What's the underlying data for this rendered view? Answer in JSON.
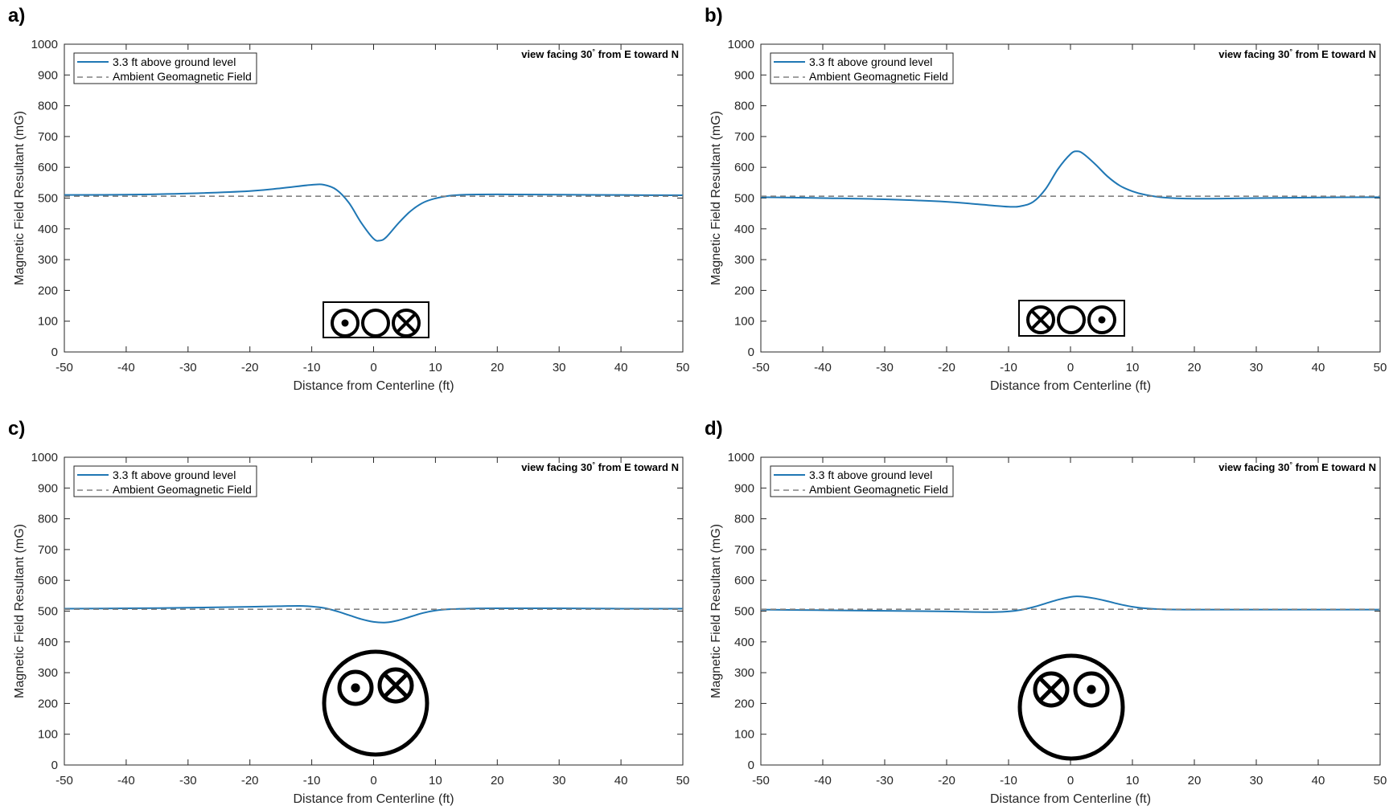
{
  "figure": {
    "common": {
      "xlabel": "Distance from Centerline (ft)",
      "ylabel": "Magnetic Field Resultant (mG)",
      "view_note_prefix": "view facing 30",
      "view_note_degree": "°",
      "view_note_suffix": " from E toward N",
      "legend": [
        "3.3 ft above ground level",
        "Ambient Geomagnetic Field"
      ],
      "xlim": [
        -50,
        50
      ],
      "ylim": [
        0,
        1000
      ],
      "xticks": [
        -50,
        -40,
        -30,
        -20,
        -10,
        0,
        10,
        20,
        30,
        40,
        50
      ],
      "yticks": [
        0,
        100,
        200,
        300,
        400,
        500,
        600,
        700,
        800,
        900,
        1000
      ],
      "colors": {
        "field_line": "#1f77b4",
        "ambient_line": "#808080",
        "axis": "#262626"
      }
    }
  },
  "chart_data": [
    {
      "type": "line",
      "panel_label": "a)",
      "xlabel": "Distance from Centerline (ft)",
      "ylabel": "Magnetic Field Resultant (mG)",
      "xlim": [
        -50,
        50
      ],
      "ylim": [
        0,
        1000
      ],
      "legend_location": "top-left",
      "series": [
        {
          "name": "3.3 ft above ground level",
          "style": "solid",
          "x": [
            -50,
            -40,
            -30,
            -20,
            -15,
            -10,
            -8,
            -6,
            -4,
            -2,
            0,
            1,
            2,
            4,
            6,
            8,
            10,
            12,
            15,
            20,
            30,
            40,
            50
          ],
          "y": [
            510,
            511,
            515,
            523,
            532,
            543,
            543,
            527,
            485,
            420,
            368,
            362,
            372,
            418,
            458,
            485,
            499,
            507,
            511,
            512,
            511,
            510,
            509
          ]
        },
        {
          "name": "Ambient Geomagnetic Field",
          "style": "dashed",
          "x": [
            -50,
            50
          ],
          "y": [
            506,
            506
          ]
        }
      ],
      "inset": {
        "kind": "row",
        "conductors": [
          "out",
          "empty",
          "in"
        ]
      }
    },
    {
      "type": "line",
      "panel_label": "b)",
      "xlabel": "Distance from Centerline (ft)",
      "ylabel": "Magnetic Field Resultant (mG)",
      "xlim": [
        -50,
        50
      ],
      "ylim": [
        0,
        1000
      ],
      "legend_location": "top-left",
      "series": [
        {
          "name": "3.3 ft above ground level",
          "style": "solid",
          "x": [
            -50,
            -40,
            -30,
            -20,
            -15,
            -10,
            -8,
            -6,
            -4,
            -2,
            0,
            1,
            2,
            4,
            6,
            8,
            10,
            12,
            15,
            20,
            30,
            40,
            50
          ],
          "y": [
            503,
            500,
            496,
            488,
            480,
            472,
            474,
            488,
            530,
            595,
            643,
            652,
            645,
            610,
            570,
            540,
            522,
            511,
            502,
            498,
            500,
            502,
            503
          ]
        },
        {
          "name": "Ambient Geomagnetic Field",
          "style": "dashed",
          "x": [
            -50,
            50
          ],
          "y": [
            506,
            506
          ]
        }
      ],
      "inset": {
        "kind": "row",
        "conductors": [
          "in",
          "empty",
          "out"
        ]
      }
    },
    {
      "type": "line",
      "panel_label": "c)",
      "xlabel": "Distance from Centerline (ft)",
      "ylabel": "Magnetic Field Resultant (mG)",
      "xlim": [
        -50,
        50
      ],
      "ylim": [
        0,
        1000
      ],
      "legend_location": "top-left",
      "series": [
        {
          "name": "3.3 ft above ground level",
          "style": "solid",
          "x": [
            -50,
            -40,
            -30,
            -20,
            -15,
            -12,
            -10,
            -8,
            -6,
            -4,
            -2,
            0,
            2,
            4,
            6,
            8,
            10,
            12,
            15,
            20,
            30,
            40,
            50
          ],
          "y": [
            508,
            509,
            511,
            514,
            516,
            517,
            515,
            510,
            500,
            487,
            474,
            465,
            463,
            470,
            482,
            494,
            502,
            506,
            508,
            509,
            509,
            508,
            508
          ]
        },
        {
          "name": "Ambient Geomagnetic Field",
          "style": "dashed",
          "x": [
            -50,
            50
          ],
          "y": [
            506,
            506
          ]
        }
      ],
      "inset": {
        "kind": "pipe",
        "conductors": [
          "out",
          "in"
        ]
      }
    },
    {
      "type": "line",
      "panel_label": "d)",
      "xlabel": "Distance from Centerline (ft)",
      "ylabel": "Magnetic Field Resultant (mG)",
      "xlim": [
        -50,
        50
      ],
      "ylim": [
        0,
        1000
      ],
      "legend_location": "top-left",
      "series": [
        {
          "name": "3.3 ft above ground level",
          "style": "solid",
          "x": [
            -50,
            -40,
            -30,
            -20,
            -15,
            -12,
            -10,
            -8,
            -6,
            -4,
            -2,
            0,
            1,
            2,
            4,
            6,
            8,
            10,
            12,
            15,
            20,
            30,
            40,
            50
          ],
          "y": [
            505,
            503,
            501,
            499,
            497,
            497,
            499,
            504,
            513,
            525,
            537,
            546,
            548,
            547,
            541,
            532,
            522,
            514,
            509,
            506,
            505,
            505,
            505,
            505
          ]
        },
        {
          "name": "Ambient Geomagnetic Field",
          "style": "dashed",
          "x": [
            -50,
            50
          ],
          "y": [
            506,
            506
          ]
        }
      ],
      "inset": {
        "kind": "pipe",
        "conductors": [
          "in",
          "out"
        ]
      }
    }
  ]
}
